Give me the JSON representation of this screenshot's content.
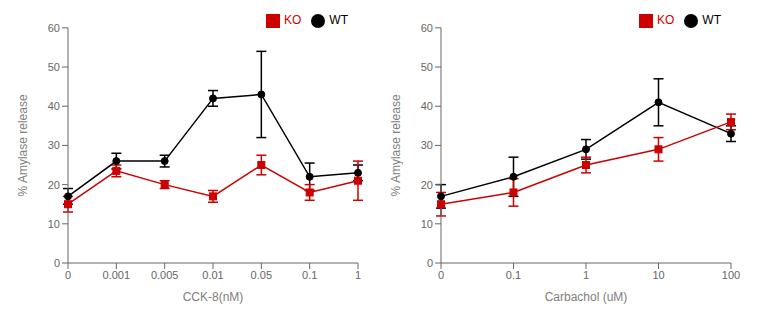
{
  "chart_data": [
    {
      "type": "line",
      "x_label": "CCK-8(nM)",
      "y_label": "% Amylase release",
      "categories": [
        "0",
        "0.001",
        "0.005",
        "0.01",
        "0.05",
        "0.1",
        "1"
      ],
      "ylim": [
        0,
        60
      ],
      "yticks": [
        0,
        10,
        20,
        30,
        40,
        50,
        60
      ],
      "grid": false,
      "legend": "upper right",
      "series": [
        {
          "name": "WT",
          "color": "#000000",
          "marker": "circle",
          "values": [
            17,
            26,
            26,
            42,
            43,
            22,
            23
          ],
          "errors": [
            2,
            2,
            1.5,
            2,
            11,
            3.5,
            2
          ]
        },
        {
          "name": "KO",
          "color": "#cc0000",
          "marker": "square",
          "values": [
            15,
            23.5,
            20,
            17,
            25,
            18,
            21
          ],
          "errors": [
            2,
            1.5,
            1,
            1.5,
            2.5,
            2,
            5
          ]
        }
      ]
    },
    {
      "type": "line",
      "x_label": "Carbachol (uM)",
      "y_label": "% Amylase release",
      "categories": [
        "0",
        "0.1",
        "1",
        "10",
        "100"
      ],
      "ylim": [
        0,
        60
      ],
      "yticks": [
        0,
        10,
        20,
        30,
        40,
        50,
        60
      ],
      "grid": false,
      "legend": "upper right",
      "series": [
        {
          "name": "WT",
          "color": "#000000",
          "marker": "circle",
          "values": [
            17,
            22,
            29,
            41,
            33
          ],
          "errors": [
            3,
            5,
            2.5,
            6,
            2
          ]
        },
        {
          "name": "KO",
          "color": "#cc0000",
          "marker": "square",
          "values": [
            15,
            18,
            25,
            29,
            36
          ],
          "errors": [
            3,
            3.5,
            2,
            3,
            2
          ]
        }
      ]
    }
  ]
}
